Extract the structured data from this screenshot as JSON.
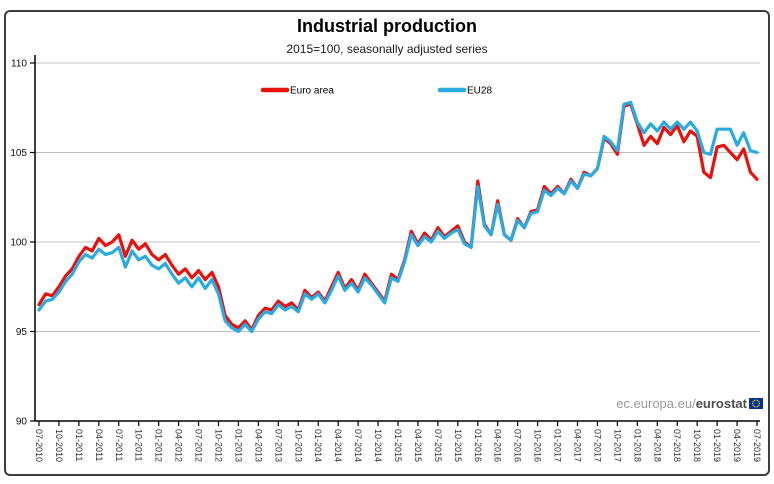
{
  "chart_data": {
    "type": "line",
    "title": "Industrial production",
    "subtitle": "2015=100, seasonally adjusted series",
    "frequency": "monthly",
    "x_start": "07-2010",
    "x_end": "07-2019",
    "x_tick_labels": [
      "07-2010",
      "10-2010",
      "01-2011",
      "04-2011",
      "07-2011",
      "10-2011",
      "01-2012",
      "04-2012",
      "07-2012",
      "10-2012",
      "01-2013",
      "04-2013",
      "07-2013",
      "10-2013",
      "01-2014",
      "04-2014",
      "07-2014",
      "10-2014",
      "01-2015",
      "04-2015",
      "07-2015",
      "10-2015",
      "01-2016",
      "04-2016",
      "07-2016",
      "10-2016",
      "01-2017",
      "04-2017",
      "07-2017",
      "10-2017",
      "01-2018",
      "04-2018",
      "07-2018",
      "10-2018",
      "01-2019",
      "04-2019",
      "07-2019"
    ],
    "y_ticks": [
      90,
      95,
      100,
      105,
      110
    ],
    "ylim": [
      90,
      111
    ],
    "grid": true,
    "legend_position": "top-inside",
    "series": [
      {
        "name": "Euro area",
        "color": "#e8110c",
        "values": [
          96.5,
          97.1,
          97.0,
          97.5,
          98.1,
          98.5,
          99.2,
          99.7,
          99.5,
          100.2,
          99.8,
          100.0,
          100.4,
          99.2,
          100.1,
          99.6,
          99.9,
          99.3,
          99.0,
          99.3,
          98.7,
          98.2,
          98.5,
          98.0,
          98.4,
          97.9,
          98.3,
          97.5,
          95.9,
          95.4,
          95.2,
          95.6,
          95.1,
          95.9,
          96.3,
          96.2,
          96.7,
          96.4,
          96.6,
          96.2,
          97.3,
          96.9,
          97.2,
          96.7,
          97.5,
          98.3,
          97.4,
          97.9,
          97.3,
          98.2,
          97.7,
          97.2,
          96.7,
          98.2,
          97.9,
          99.0,
          100.6,
          99.9,
          100.5,
          100.1,
          100.8,
          100.3,
          100.6,
          100.9,
          100.0,
          99.7,
          103.4,
          101.0,
          100.4,
          102.3,
          100.4,
          100.1,
          101.3,
          100.8,
          101.7,
          101.8,
          103.1,
          102.7,
          103.1,
          102.7,
          103.5,
          103.0,
          103.9,
          103.7,
          104.1,
          105.8,
          105.5,
          104.9,
          107.6,
          107.7,
          106.6,
          105.4,
          105.9,
          105.5,
          106.4,
          106.0,
          106.5,
          105.6,
          106.2,
          105.9,
          103.9,
          103.6,
          105.3,
          105.4,
          105.0,
          104.6,
          105.2,
          103.9,
          103.5
        ]
      },
      {
        "name": "EU28",
        "color": "#29abe2",
        "values": [
          96.2,
          96.7,
          96.8,
          97.2,
          97.8,
          98.2,
          98.9,
          99.3,
          99.1,
          99.6,
          99.3,
          99.4,
          99.7,
          98.6,
          99.5,
          99.0,
          99.2,
          98.7,
          98.5,
          98.8,
          98.2,
          97.7,
          98.0,
          97.5,
          98.0,
          97.4,
          97.9,
          97.1,
          95.6,
          95.2,
          95.0,
          95.4,
          95.0,
          95.7,
          96.1,
          96.0,
          96.5,
          96.2,
          96.4,
          96.1,
          97.1,
          96.8,
          97.1,
          96.6,
          97.3,
          98.1,
          97.3,
          97.7,
          97.2,
          98.0,
          97.6,
          97.1,
          96.6,
          98.0,
          97.8,
          98.9,
          100.4,
          99.8,
          100.3,
          100.0,
          100.6,
          100.2,
          100.5,
          100.7,
          99.9,
          99.7,
          103.1,
          100.9,
          100.4,
          102.1,
          100.4,
          100.1,
          101.2,
          100.8,
          101.6,
          101.7,
          102.9,
          102.6,
          103.0,
          102.7,
          103.4,
          103.0,
          103.8,
          103.7,
          104.1,
          105.9,
          105.6,
          105.1,
          107.7,
          107.8,
          106.7,
          106.1,
          106.6,
          106.2,
          106.7,
          106.3,
          106.7,
          106.3,
          106.7,
          106.2,
          105.0,
          104.9,
          106.3,
          106.3,
          106.3,
          105.4,
          106.1,
          105.1,
          105.0
        ]
      }
    ]
  },
  "watermark": {
    "prefix": "ec.europa.eu/",
    "brand": "eurostat",
    "flag_blue": "#003399",
    "flag_star": "#ffcc00"
  },
  "colors": {
    "gridline": "#bfbfbf",
    "axis": "#000000",
    "tick_label": "#333333"
  }
}
